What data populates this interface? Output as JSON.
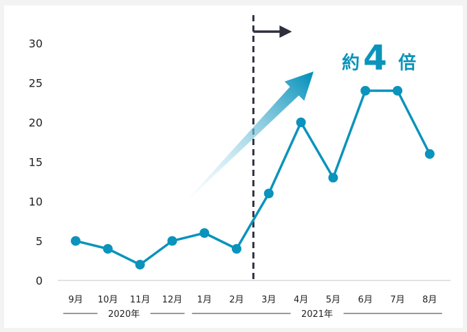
{
  "colors": {
    "line": "#0a93bc",
    "marker": "#0a93bc",
    "divider": "#2d2f3e",
    "annotation": "#0a93bc",
    "arrow_gradient_start": "#0a93bc",
    "arrow_gradient_end": "#ffffff",
    "axis": "#d9d9d9",
    "background": "#f3f3f3",
    "plot_background": "#ffffff"
  },
  "annotation": {
    "prefix": "約",
    "number": "4",
    "suffix": "倍"
  },
  "chart_data": {
    "type": "line",
    "categories": [
      "9月",
      "10月",
      "11月",
      "12月",
      "1月",
      "2月",
      "3月",
      "4月",
      "5月",
      "6月",
      "7月",
      "8月"
    ],
    "values": [
      5,
      4,
      2,
      5,
      6,
      4,
      11,
      20,
      13,
      24,
      24,
      16
    ],
    "ylim": [
      0,
      30
    ],
    "yticks": [
      0,
      5,
      10,
      15,
      20,
      25,
      30
    ],
    "year_groups": [
      {
        "label": "2020年",
        "start": "9月",
        "end": "12月"
      },
      {
        "label": "2021年",
        "start": "1月",
        "end": "8月"
      }
    ],
    "divider_between": [
      "2月",
      "3月"
    ],
    "grid": false,
    "legend": "none"
  }
}
